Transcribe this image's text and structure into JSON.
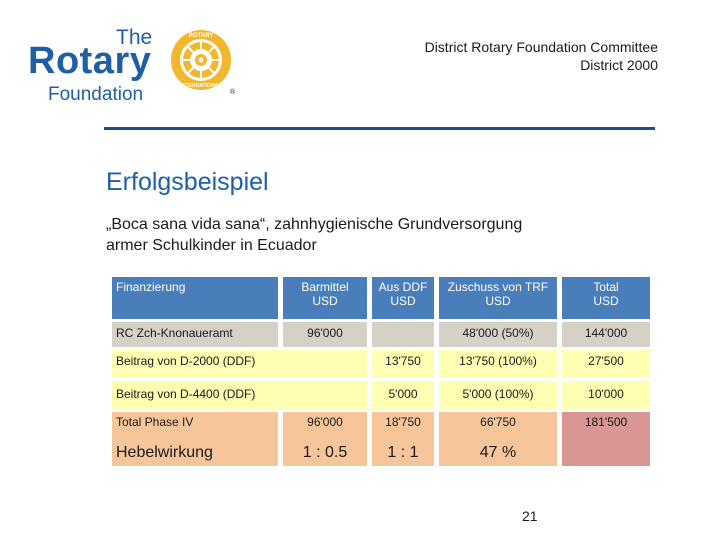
{
  "logo": {
    "the": "The",
    "rotary": "Rotary",
    "foundation": "Foundation",
    "ring_top": "ROTARY",
    "ring_bottom": "INTERNATIONAL"
  },
  "header": {
    "line1": "District Rotary Foundation Committee",
    "line2": "District 2000"
  },
  "title": "Erfolgsbeispiel",
  "subtitle": "„Boca sana vida sana“, zahnhygienische Grundversorgung armer Schulkinder in Ecuador",
  "table": {
    "headers": {
      "col0": "Finanzierung",
      "col1": "Barmittel USD",
      "col2": "Aus DDF USD",
      "col3": "Zuschuss von TRF USD",
      "col4": "Total USD"
    },
    "rows": [
      {
        "label": "RC Zch-Knonaueramt",
        "c1": "96'000",
        "c2": "",
        "c3": "48'000  (50%)",
        "c4": "144'000"
      },
      {
        "label": "Beitrag von D-2000 (DDF)",
        "c1": "",
        "c2": "13'750",
        "c3": "13'750 (100%)",
        "c4": "27'500"
      },
      {
        "label": "Beitrag von D-4400 (DDF)",
        "c1": "",
        "c2": "5'000",
        "c3": "5'000 (100%)",
        "c4": "10'000"
      },
      {
        "label": "Total Phase IV",
        "c1": "96'000",
        "c2": "18'750",
        "c3": "66'750",
        "c4": "181'500"
      },
      {
        "label": "Hebelwirkung",
        "c1": "1 : 0.5",
        "c2": "1 : 1",
        "c3": "47 %",
        "c4": ""
      }
    ]
  },
  "page_number": "21",
  "colors": {
    "header_blue": "#4a7ebb",
    "grey": "#d6d0c6",
    "yellow": "#ffffb3",
    "orange": "#f7c59a",
    "rose": "#d99694",
    "brand_blue": "#1f5fa6",
    "gold": "#f3b72d"
  }
}
